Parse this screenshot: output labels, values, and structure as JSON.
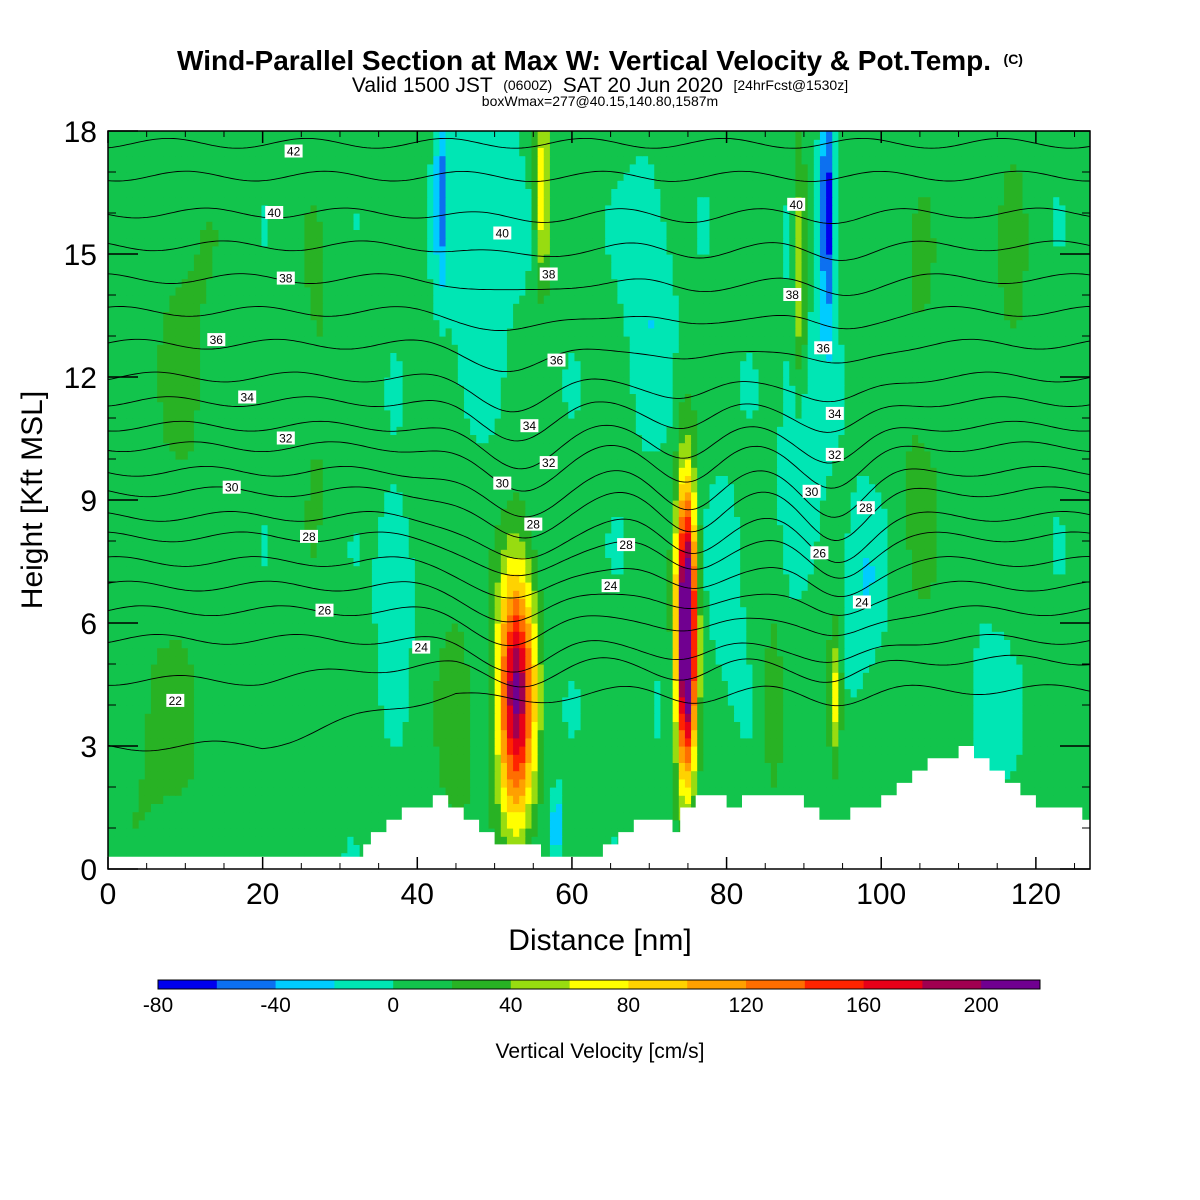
{
  "title": {
    "main": "Wind-Parallel Section at Max W: Vertical Velocity & Pot.Temp.",
    "copyright": "(C)",
    "valid_prefix": "Valid 1500 JST",
    "valid_utc": "(0600Z)",
    "valid_date": "SAT 20 Jun 2020",
    "forecast": "[24hrFcst@1530z]",
    "box_info": "boxWmax=277@40.15,140.80,1587m"
  },
  "chart_data": {
    "type": "heatmap",
    "xlabel": "Distance [nm]",
    "ylabel": "Height [Kft MSL]",
    "xlim": [
      0,
      127
    ],
    "ylim": [
      0,
      18
    ],
    "xticks": [
      "0",
      "20",
      "40",
      "60",
      "80",
      "100",
      "120"
    ],
    "yticks": [
      "0",
      "3",
      "6",
      "9",
      "12",
      "15",
      "18"
    ],
    "background_w": 5,
    "colorbar": {
      "title": "Vertical Velocity [cm/s]",
      "tick_labels": [
        "-80",
        "-40",
        "0",
        "40",
        "80",
        "120",
        "160",
        "200"
      ],
      "levels": [
        -80,
        -60,
        -40,
        -20,
        0,
        20,
        40,
        60,
        80,
        100,
        120,
        140,
        160,
        180,
        200,
        220
      ],
      "colors": [
        "#0000ee",
        "#0c70f0",
        "#00ccff",
        "#00e6b4",
        "#12c44c",
        "#28b224",
        "#98dc10",
        "#ffff00",
        "#ffd200",
        "#ffa000",
        "#ff6e00",
        "#ff2400",
        "#e80018",
        "#a00050",
        "#700090"
      ]
    },
    "updrafts": [
      {
        "x": 52.8,
        "z": 4.3,
        "sx": 1.7,
        "sz": 2.2,
        "w": 195
      },
      {
        "x": 74.8,
        "z": 5.8,
        "sx": 0.9,
        "sz": 2.4,
        "w": 277
      },
      {
        "x": 94.0,
        "z": 4.2,
        "sx": 0.6,
        "sz": 1.2,
        "w": 70
      },
      {
        "x": 56.2,
        "z": 16.5,
        "sx": 0.7,
        "sz": 1.6,
        "w": 75
      },
      {
        "x": 89.5,
        "z": 14.5,
        "sx": 0.6,
        "sz": 2.0,
        "w": 65
      },
      {
        "x": 10,
        "z": 13,
        "sx": 4,
        "sz": 4,
        "w": 18
      },
      {
        "x": 7,
        "z": 3,
        "sx": 6,
        "sz": 2.5,
        "w": 18
      },
      {
        "x": 45,
        "z": 3.5,
        "sx": 2,
        "sz": 2.5,
        "w": 25
      },
      {
        "x": 27,
        "z": 12,
        "sx": 2,
        "sz": 4,
        "w": 18
      },
      {
        "x": 105,
        "z": 11,
        "sx": 3,
        "sz": 5,
        "w": 18
      },
      {
        "x": 117,
        "z": 14,
        "sx": 2,
        "sz": 4,
        "w": 18
      },
      {
        "x": 86,
        "z": 4,
        "sx": 1,
        "sz": 2,
        "w": 25
      }
    ],
    "downdrafts": [
      {
        "x": 93.0,
        "z": 16.0,
        "sx": 0.6,
        "sz": 2.0,
        "w": -85
      },
      {
        "x": 43.0,
        "z": 16.5,
        "sx": 0.4,
        "sz": 1.6,
        "w": -55
      },
      {
        "x": 48,
        "z": 16,
        "sx": 3,
        "sz": 2.5,
        "w": -28
      },
      {
        "x": 70,
        "z": 14,
        "sx": 2,
        "sz": 2,
        "w": -25
      },
      {
        "x": 90,
        "z": 11,
        "sx": 2,
        "sz": 2,
        "w": -25
      },
      {
        "x": 37,
        "z": 7,
        "sx": 1.5,
        "sz": 1.5,
        "w": -25
      },
      {
        "x": 98,
        "z": 7,
        "sx": 2,
        "sz": 1.5,
        "w": -25
      },
      {
        "x": 114,
        "z": 4,
        "sx": 2,
        "sz": 1.2,
        "w": -22
      },
      {
        "x": 58,
        "z": 1,
        "sx": 0.6,
        "sz": 0.6,
        "w": -45
      },
      {
        "x": 80,
        "z": 7,
        "sx": 1.5,
        "sz": 1.5,
        "w": -22
      }
    ],
    "terrain": [
      [
        0,
        0.3
      ],
      [
        5,
        0.3
      ],
      [
        10,
        0.3
      ],
      [
        15,
        0.3
      ],
      [
        20,
        0.3
      ],
      [
        25,
        0.3
      ],
      [
        30,
        0.3
      ],
      [
        32,
        0.3
      ],
      [
        33,
        0.6
      ],
      [
        34,
        0.9
      ],
      [
        36,
        1.2
      ],
      [
        38,
        1.5
      ],
      [
        40,
        1.5
      ],
      [
        42,
        1.8
      ],
      [
        44,
        1.5
      ],
      [
        46,
        1.2
      ],
      [
        48,
        0.9
      ],
      [
        50,
        0.6
      ],
      [
        52,
        0.6
      ],
      [
        54,
        0.6
      ],
      [
        56,
        0.3
      ],
      [
        58,
        0.3
      ],
      [
        60,
        0.3
      ],
      [
        62,
        0.3
      ],
      [
        64,
        0.6
      ],
      [
        66,
        0.9
      ],
      [
        68,
        1.2
      ],
      [
        70,
        1.2
      ],
      [
        72,
        1.2
      ],
      [
        73,
        0.9
      ],
      [
        74,
        1.5
      ],
      [
        76,
        1.8
      ],
      [
        78,
        1.8
      ],
      [
        80,
        1.5
      ],
      [
        82,
        1.8
      ],
      [
        84,
        1.8
      ],
      [
        86,
        1.8
      ],
      [
        88,
        1.8
      ],
      [
        90,
        1.5
      ],
      [
        92,
        1.2
      ],
      [
        93,
        1.2
      ],
      [
        94,
        1.2
      ],
      [
        95,
        1.2
      ],
      [
        96,
        1.5
      ],
      [
        98,
        1.5
      ],
      [
        100,
        1.8
      ],
      [
        102,
        2.1
      ],
      [
        104,
        2.4
      ],
      [
        106,
        2.7
      ],
      [
        108,
        2.7
      ],
      [
        110,
        3.0
      ],
      [
        112,
        2.7
      ],
      [
        114,
        2.4
      ],
      [
        116,
        2.1
      ],
      [
        118,
        1.8
      ],
      [
        120,
        1.5
      ],
      [
        124,
        1.5
      ],
      [
        126,
        1.2
      ],
      [
        127,
        1.2
      ]
    ],
    "theta_levels": [
      22,
      23,
      24,
      25,
      26,
      27,
      28,
      29,
      30,
      31,
      32,
      33,
      34,
      35,
      36,
      37,
      38,
      39,
      40,
      41,
      42
    ],
    "theta_base_heights": [
      3.0,
      4.6,
      5.6,
      6.3,
      6.9,
      7.5,
      8.1,
      8.6,
      9.2,
      9.7,
      10.3,
      10.8,
      11.4,
      12.0,
      12.8,
      13.6,
      14.4,
      15.2,
      16.0,
      16.9,
      17.7
    ],
    "theta_labels": [
      {
        "text": "22",
        "x": 8.7,
        "z": 4.1
      },
      {
        "text": "24",
        "x": 40.5,
        "z": 5.4
      },
      {
        "text": "24",
        "x": 65.0,
        "z": 6.9
      },
      {
        "text": "24",
        "x": 97.5,
        "z": 6.5
      },
      {
        "text": "26",
        "x": 28.0,
        "z": 6.3
      },
      {
        "text": "26",
        "x": 92.0,
        "z": 7.7
      },
      {
        "text": "28",
        "x": 26.0,
        "z": 8.1
      },
      {
        "text": "28",
        "x": 55.0,
        "z": 8.4
      },
      {
        "text": "28",
        "x": 67.0,
        "z": 7.9
      },
      {
        "text": "28",
        "x": 98.0,
        "z": 8.8
      },
      {
        "text": "30",
        "x": 16.0,
        "z": 9.3
      },
      {
        "text": "30",
        "x": 51.0,
        "z": 9.4
      },
      {
        "text": "30",
        "x": 91.0,
        "z": 9.2
      },
      {
        "text": "32",
        "x": 23.0,
        "z": 10.5
      },
      {
        "text": "32",
        "x": 57.0,
        "z": 9.9
      },
      {
        "text": "32",
        "x": 94.0,
        "z": 10.1
      },
      {
        "text": "34",
        "x": 18.0,
        "z": 11.5
      },
      {
        "text": "34",
        "x": 54.5,
        "z": 10.8
      },
      {
        "text": "34",
        "x": 94.0,
        "z": 11.1
      },
      {
        "text": "36",
        "x": 14.0,
        "z": 12.9
      },
      {
        "text": "36",
        "x": 58.0,
        "z": 12.4
      },
      {
        "text": "36",
        "x": 92.5,
        "z": 12.7
      },
      {
        "text": "38",
        "x": 23.0,
        "z": 14.4
      },
      {
        "text": "38",
        "x": 57.0,
        "z": 14.5
      },
      {
        "text": "38",
        "x": 88.5,
        "z": 14.0
      },
      {
        "text": "40",
        "x": 21.5,
        "z": 16.0
      },
      {
        "text": "40",
        "x": 51.0,
        "z": 15.5
      },
      {
        "text": "40",
        "x": 89.0,
        "z": 16.2
      },
      {
        "text": "42",
        "x": 24.0,
        "z": 17.5
      }
    ]
  }
}
